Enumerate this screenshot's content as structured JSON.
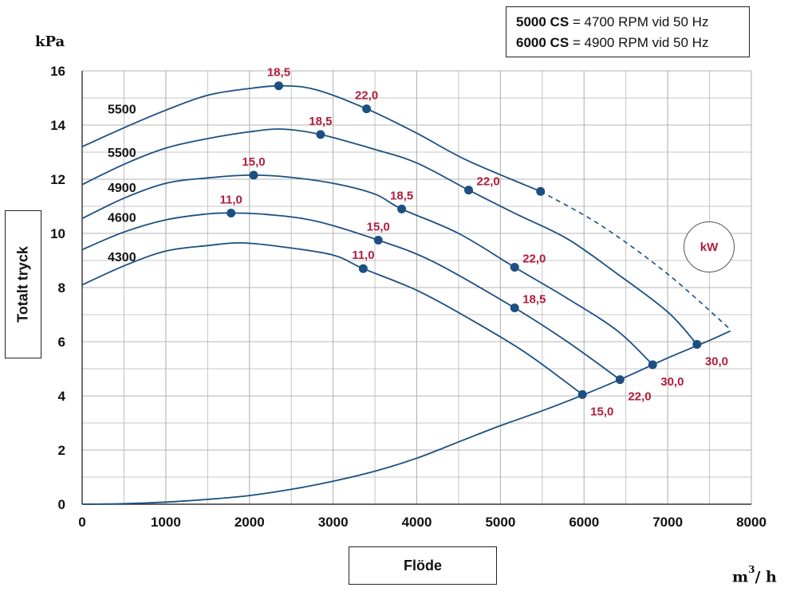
{
  "note": {
    "line1_model": "5000 CS",
    "line1_text": " = 4700 RPM vid 50 Hz",
    "line2_model": "6000 CS",
    "line2_text": " = 4900 RPM vid 50 Hz"
  },
  "kw_badge": "kW",
  "units": {
    "y": "kPa",
    "x_base": "m",
    "x_exp": "3",
    "x_tail": "/ h"
  },
  "colors": {
    "curve": "#1c4f82",
    "marker": "#1c4f82",
    "power_label": "#b01e3c",
    "grid": "#b4b4b4",
    "axis_text": "#111111"
  },
  "chart_data": {
    "type": "line",
    "xlabel": "Flöde",
    "ylabel": "Totalt tryck",
    "xlim": [
      0,
      8000
    ],
    "ylim": [
      0,
      16
    ],
    "x_ticks": [
      0,
      1000,
      2000,
      3000,
      4000,
      5000,
      6000,
      7000,
      8000
    ],
    "y_ticks": [
      0,
      2,
      4,
      6,
      8,
      10,
      12,
      14,
      16
    ],
    "grid": true,
    "series": [
      {
        "name": "5500",
        "label_y": 14.6,
        "dashed_from": 5480,
        "points": [
          [
            0,
            13.2
          ],
          [
            500,
            13.9
          ],
          [
            1000,
            14.55
          ],
          [
            1500,
            15.1
          ],
          [
            2000,
            15.35
          ],
          [
            2400,
            15.45
          ],
          [
            2800,
            15.3
          ],
          [
            3400,
            14.6
          ],
          [
            4000,
            13.7
          ],
          [
            4600,
            12.7
          ],
          [
            5480,
            11.55
          ],
          [
            6200,
            10.3
          ],
          [
            7000,
            8.5
          ],
          [
            7750,
            6.45
          ]
        ],
        "markers": [
          [
            2350,
            15.45,
            "18,5",
            "above"
          ],
          [
            3400,
            14.6,
            "22,0",
            "above"
          ],
          [
            5480,
            11.55,
            "",
            ""
          ]
        ]
      },
      {
        "name": "5500",
        "label_y": 13.0,
        "points": [
          [
            0,
            11.8
          ],
          [
            500,
            12.55
          ],
          [
            1000,
            13.15
          ],
          [
            1500,
            13.5
          ],
          [
            2000,
            13.75
          ],
          [
            2400,
            13.85
          ],
          [
            2850,
            13.65
          ],
          [
            3500,
            13.1
          ],
          [
            4000,
            12.6
          ],
          [
            4620,
            11.6
          ],
          [
            5200,
            10.7
          ],
          [
            5800,
            9.8
          ],
          [
            6400,
            8.5
          ],
          [
            7000,
            7.1
          ],
          [
            7350,
            5.9
          ]
        ],
        "markers": [
          [
            2850,
            13.65,
            "18,5",
            "above"
          ],
          [
            4620,
            11.6,
            "22,0",
            "right"
          ],
          [
            7350,
            5.9,
            "30,0",
            "below"
          ]
        ]
      },
      {
        "name": "4900",
        "label_y": 11.7,
        "points": [
          [
            0,
            10.55
          ],
          [
            500,
            11.3
          ],
          [
            1000,
            11.85
          ],
          [
            1500,
            12.05
          ],
          [
            2000,
            12.15
          ],
          [
            2400,
            12.1
          ],
          [
            3000,
            11.85
          ],
          [
            3500,
            11.45
          ],
          [
            3820,
            10.9
          ],
          [
            4500,
            10.0
          ],
          [
            5170,
            8.75
          ],
          [
            5800,
            7.6
          ],
          [
            6400,
            6.4
          ],
          [
            6820,
            5.15
          ]
        ],
        "markers": [
          [
            2050,
            12.15,
            "15,0",
            "above"
          ],
          [
            3820,
            10.9,
            "18,5",
            "above"
          ],
          [
            5170,
            8.75,
            "22,0",
            "right"
          ],
          [
            6820,
            5.15,
            "30,0",
            "below"
          ]
        ]
      },
      {
        "name": "4600",
        "label_y": 10.6,
        "points": [
          [
            0,
            9.4
          ],
          [
            500,
            10.05
          ],
          [
            1000,
            10.5
          ],
          [
            1500,
            10.72
          ],
          [
            1780,
            10.75
          ],
          [
            2200,
            10.7
          ],
          [
            2800,
            10.45
          ],
          [
            3540,
            9.75
          ],
          [
            4200,
            8.95
          ],
          [
            5170,
            7.25
          ],
          [
            5800,
            6.0
          ],
          [
            6430,
            4.6
          ]
        ],
        "markers": [
          [
            1780,
            10.75,
            "11,0",
            "above"
          ],
          [
            3540,
            9.75,
            "15,0",
            "above"
          ],
          [
            5170,
            7.25,
            "18,5",
            "right"
          ],
          [
            6430,
            4.6,
            "22,0",
            "below"
          ]
        ]
      },
      {
        "name": "4300",
        "label_y": 9.15,
        "points": [
          [
            0,
            8.1
          ],
          [
            500,
            8.8
          ],
          [
            1000,
            9.35
          ],
          [
            1500,
            9.55
          ],
          [
            1900,
            9.65
          ],
          [
            2400,
            9.5
          ],
          [
            3000,
            9.2
          ],
          [
            3360,
            8.7
          ],
          [
            4000,
            7.9
          ],
          [
            4600,
            6.9
          ],
          [
            5300,
            5.6
          ],
          [
            5980,
            4.05
          ]
        ],
        "markers": [
          [
            3360,
            8.7,
            "11,0",
            "above"
          ],
          [
            5980,
            4.05,
            "15,0",
            "below"
          ]
        ]
      },
      {
        "name": "",
        "label_y": null,
        "points": [
          [
            0,
            0
          ],
          [
            500,
            0.02
          ],
          [
            1000,
            0.08
          ],
          [
            1500,
            0.18
          ],
          [
            2000,
            0.32
          ],
          [
            2500,
            0.55
          ],
          [
            3000,
            0.85
          ],
          [
            3500,
            1.22
          ],
          [
            4000,
            1.7
          ],
          [
            4500,
            2.3
          ],
          [
            5000,
            2.9
          ],
          [
            5500,
            3.45
          ],
          [
            6000,
            4.05
          ],
          [
            6500,
            4.7
          ],
          [
            7000,
            5.4
          ],
          [
            7500,
            6.05
          ],
          [
            7750,
            6.4
          ]
        ],
        "markers": []
      }
    ]
  }
}
